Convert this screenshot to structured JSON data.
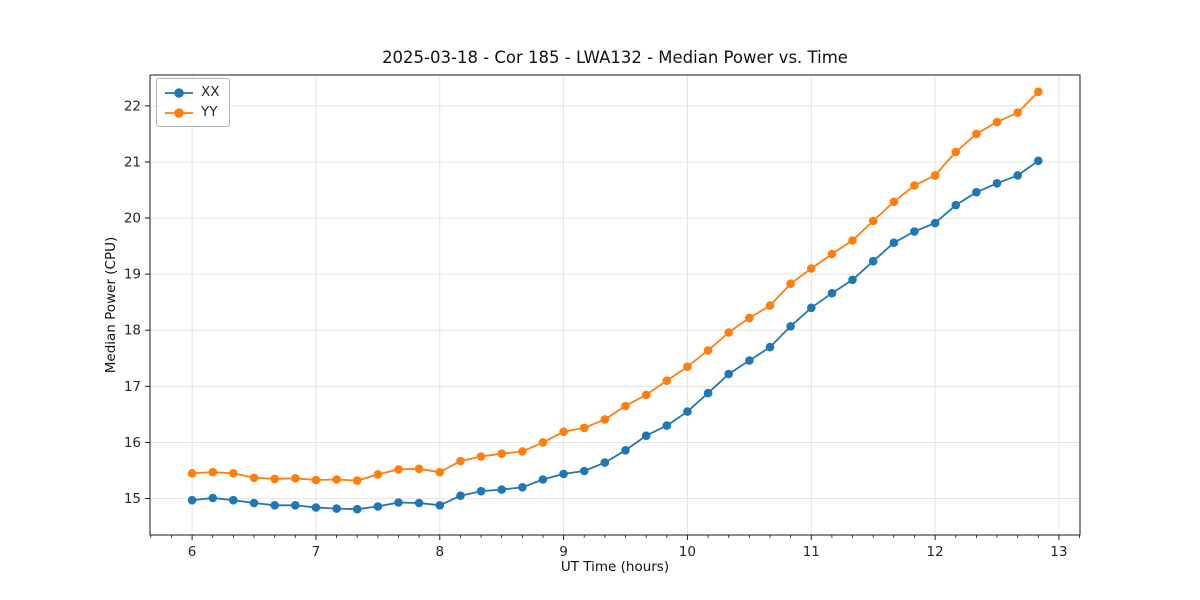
{
  "chart_data": {
    "type": "line",
    "title": "2025-03-18 - Cor 185 - LWA132 - Median Power vs. Time",
    "xlabel": "UT Time (hours)",
    "ylabel": "Median Power (CPU)",
    "x": [
      6.0,
      6.167,
      6.333,
      6.5,
      6.667,
      6.833,
      7.0,
      7.167,
      7.333,
      7.5,
      7.667,
      7.833,
      8.0,
      8.167,
      8.333,
      8.5,
      8.667,
      8.833,
      9.0,
      9.167,
      9.333,
      9.5,
      9.667,
      9.833,
      10.0,
      10.167,
      10.333,
      10.5,
      10.667,
      10.833,
      11.0,
      11.167,
      11.333,
      11.5,
      11.667,
      11.833,
      12.0,
      12.167,
      12.333,
      12.5,
      12.667,
      12.833
    ],
    "series": [
      {
        "name": "XX",
        "color": "#1f77b4",
        "marker": "circle",
        "values": [
          14.97,
          15.01,
          14.97,
          14.92,
          14.88,
          14.88,
          14.84,
          14.82,
          14.81,
          14.86,
          14.93,
          14.92,
          14.88,
          15.05,
          15.13,
          15.16,
          15.2,
          15.34,
          15.44,
          15.49,
          15.64,
          15.86,
          16.12,
          16.3,
          16.55,
          16.88,
          17.22,
          17.46,
          17.7,
          18.07,
          18.4,
          18.66,
          18.9,
          19.23,
          19.56,
          19.76,
          19.91,
          20.23,
          20.46,
          20.62,
          20.76,
          21.02
        ]
      },
      {
        "name": "YY",
        "color": "#ff7f0e",
        "marker": "circle",
        "values": [
          15.45,
          15.47,
          15.45,
          15.37,
          15.35,
          15.36,
          15.33,
          15.34,
          15.32,
          15.43,
          15.52,
          15.53,
          15.47,
          15.67,
          15.75,
          15.8,
          15.84,
          16.0,
          16.19,
          16.26,
          16.41,
          16.65,
          16.85,
          17.1,
          17.35,
          17.64,
          17.96,
          18.22,
          18.44,
          18.83,
          19.1,
          19.36,
          19.6,
          19.95,
          20.29,
          20.58,
          20.76,
          21.18,
          21.5,
          21.71,
          21.88,
          22.25
        ]
      }
    ],
    "xlim": [
      5.66,
      13.17
    ],
    "ylim": [
      14.35,
      22.55
    ],
    "xticks": [
      6,
      7,
      8,
      9,
      10,
      11,
      12,
      13
    ],
    "yticks": [
      15,
      16,
      17,
      18,
      19,
      20,
      21,
      22
    ],
    "x_minor_step": 0.1667,
    "y_minor_ticks": false,
    "grid": true,
    "legend_position": "upper left"
  }
}
